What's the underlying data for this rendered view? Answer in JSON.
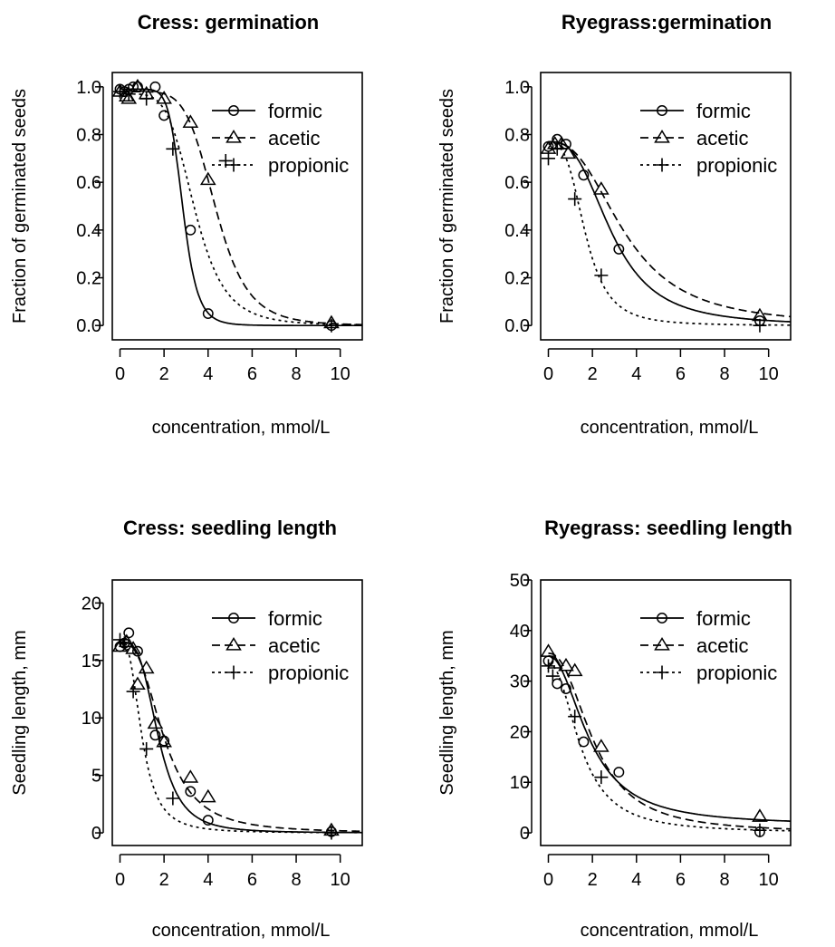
{
  "chart_data": [
    {
      "type": "scatter",
      "title": "Cress: germination",
      "xlabel": "concentration, mmol/L",
      "ylabel": "Fraction of germinated seeds",
      "xlim": [
        -0.35,
        11
      ],
      "ylim": [
        -0.06,
        1.06
      ],
      "xticks": [
        0,
        2,
        4,
        6,
        8,
        10
      ],
      "yticks": [
        0,
        0.2,
        0.4,
        0.6,
        0.8,
        1.0
      ],
      "ytick_labels": [
        "0.0",
        "0.2",
        "0.4",
        "0.6",
        "0.8",
        "1.0"
      ],
      "legend": {
        "position": "top-right"
      },
      "series": [
        {
          "name": "formic",
          "marker": "circle",
          "line": "solid",
          "points": [
            [
              0,
              0.99
            ],
            [
              0.2,
              0.98
            ],
            [
              0.4,
              0.99
            ],
            [
              0.6,
              1.0
            ],
            [
              0.8,
              1.0
            ],
            [
              1.6,
              1.0
            ],
            [
              2.0,
              0.88
            ],
            [
              3.2,
              0.4
            ],
            [
              4.0,
              0.05
            ],
            [
              9.6,
              0.0
            ]
          ],
          "curve": {
            "top": 0.99,
            "ec50": 2.85,
            "slope": 8.5
          }
        },
        {
          "name": "acetic",
          "marker": "triangle",
          "line": "dashed",
          "points": [
            [
              0,
              0.98
            ],
            [
              0.3,
              0.96
            ],
            [
              0.4,
              0.95
            ],
            [
              0.8,
              1.0
            ],
            [
              1.2,
              0.97
            ],
            [
              2.0,
              0.95
            ],
            [
              3.2,
              0.85
            ],
            [
              4.0,
              0.61
            ],
            [
              9.6,
              0.01
            ]
          ],
          "curve": {
            "top": 0.98,
            "ec50": 4.35,
            "slope": 6.0
          }
        },
        {
          "name": "propionic",
          "marker": "plus",
          "line": "dotted",
          "points": [
            [
              0,
              0.98
            ],
            [
              0.4,
              0.97
            ],
            [
              1.2,
              0.95
            ],
            [
              2.4,
              0.74
            ],
            [
              4.8,
              0.69
            ],
            [
              9.6,
              0.0
            ]
          ],
          "curve": {
            "top": 0.97,
            "ec50": 3.4,
            "slope": 5.0
          }
        }
      ]
    },
    {
      "type": "scatter",
      "title": "Ryegrass:germination",
      "xlabel": "concentration, mmol/L",
      "ylabel": "Fraction of germinated seeds",
      "xlim": [
        -0.35,
        11
      ],
      "ylim": [
        -0.06,
        1.06
      ],
      "xticks": [
        0,
        2,
        4,
        6,
        8,
        10
      ],
      "yticks": [
        0,
        0.2,
        0.4,
        0.6,
        0.8,
        1.0
      ],
      "ytick_labels": [
        "0.0",
        "0.2",
        "0.4",
        "0.6",
        "0.8",
        "1.0"
      ],
      "legend": {
        "position": "top-right"
      },
      "series": [
        {
          "name": "formic",
          "marker": "circle",
          "line": "solid",
          "points": [
            [
              0,
              0.75
            ],
            [
              0.4,
              0.78
            ],
            [
              0.8,
              0.76
            ],
            [
              1.6,
              0.63
            ],
            [
              3.2,
              0.32
            ],
            [
              9.6,
              0.02
            ]
          ],
          "curve": {
            "top": 0.77,
            "ec50": 2.9,
            "slope": 2.9
          }
        },
        {
          "name": "acetic",
          "marker": "triangle",
          "line": "dashed",
          "points": [
            [
              0,
              0.74
            ],
            [
              0.3,
              0.76
            ],
            [
              0.6,
              0.76
            ],
            [
              0.9,
              0.72
            ],
            [
              2.4,
              0.57
            ],
            [
              9.6,
              0.04
            ]
          ],
          "curve": {
            "top": 0.77,
            "ec50": 3.5,
            "slope": 2.6
          }
        },
        {
          "name": "propionic",
          "marker": "plus",
          "line": "dotted",
          "points": [
            [
              0,
              0.7
            ],
            [
              0.4,
              0.74
            ],
            [
              1.2,
              0.53
            ],
            [
              2.4,
              0.21
            ],
            [
              9.6,
              0.0
            ]
          ],
          "curve": {
            "top": 0.76,
            "ec50": 1.7,
            "slope": 3.3
          }
        }
      ]
    },
    {
      "type": "scatter",
      "title": "Cress: seedling length",
      "xlabel": "concentration, mmol/L",
      "ylabel": "Seedling length, mm",
      "xlim": [
        -0.35,
        11
      ],
      "ylim": [
        -1.1,
        22
      ],
      "xticks": [
        0,
        2,
        4,
        6,
        8,
        10
      ],
      "yticks": [
        0,
        5,
        10,
        15,
        20
      ],
      "ytick_labels": [
        "0",
        "5",
        "10",
        "15",
        "20"
      ],
      "legend": {
        "position": "top-right"
      },
      "series": [
        {
          "name": "formic",
          "marker": "circle",
          "line": "solid",
          "points": [
            [
              0,
              16.2
            ],
            [
              0.2,
              16.5
            ],
            [
              0.4,
              17.4
            ],
            [
              0.8,
              15.8
            ],
            [
              1.6,
              8.5
            ],
            [
              2.0,
              8.0
            ],
            [
              3.2,
              3.6
            ],
            [
              4.0,
              1.1
            ],
            [
              9.6,
              0.1
            ]
          ],
          "curve": {
            "top": 16.6,
            "ec50": 1.75,
            "slope": 3.5
          }
        },
        {
          "name": "acetic",
          "marker": "triangle",
          "line": "dashed",
          "points": [
            [
              0,
              16.2
            ],
            [
              0.3,
              16.6
            ],
            [
              0.6,
              16.0
            ],
            [
              0.8,
              12.9
            ],
            [
              1.2,
              14.3
            ],
            [
              1.6,
              9.5
            ],
            [
              2.0,
              7.9
            ],
            [
              3.2,
              4.8
            ],
            [
              4.0,
              3.1
            ],
            [
              9.6,
              0.2
            ]
          ],
          "curve": {
            "top": 16.6,
            "ec50": 2.0,
            "slope": 2.8
          }
        },
        {
          "name": "propionic",
          "marker": "plus",
          "line": "dotted",
          "points": [
            [
              0,
              16.8
            ],
            [
              0.2,
              16.5
            ],
            [
              0.6,
              12.3
            ],
            [
              1.2,
              7.3
            ],
            [
              2.4,
              3.0
            ],
            [
              9.6,
              0.0
            ]
          ],
          "curve": {
            "top": 16.8,
            "ec50": 1.0,
            "slope": 2.8
          }
        }
      ]
    },
    {
      "type": "scatter",
      "title": "Ryegrass: seedling length",
      "xlabel": "concentration, mmol/L",
      "ylabel": "Seedling length, mm",
      "xlim": [
        -0.35,
        11
      ],
      "ylim": [
        -2.5,
        50
      ],
      "xticks": [
        0,
        2,
        4,
        6,
        8,
        10
      ],
      "yticks": [
        0,
        10,
        20,
        30,
        40,
        50
      ],
      "ytick_labels": [
        "0",
        "10",
        "20",
        "30",
        "40",
        "50"
      ],
      "legend": {
        "position": "top-right"
      },
      "series": [
        {
          "name": "formic",
          "marker": "circle",
          "line": "solid",
          "points": [
            [
              0,
              34.0
            ],
            [
              0.4,
              29.5
            ],
            [
              0.8,
              28.5
            ],
            [
              1.6,
              18.0
            ],
            [
              3.2,
              12.0
            ],
            [
              9.6,
              0.2
            ]
          ],
          "curve": {
            "top": 35.0,
            "ec50": 1.9,
            "slope": 2.1,
            "bottom": 1.5
          }
        },
        {
          "name": "acetic",
          "marker": "triangle",
          "line": "dashed",
          "points": [
            [
              0,
              35.8
            ],
            [
              0.3,
              33.5
            ],
            [
              0.8,
              33.0
            ],
            [
              1.2,
              32.0
            ],
            [
              2.4,
              17.0
            ],
            [
              9.6,
              3.2
            ]
          ],
          "curve": {
            "top": 35.5,
            "ec50": 2.1,
            "slope": 2.3
          }
        },
        {
          "name": "propionic",
          "marker": "plus",
          "line": "dotted",
          "points": [
            [
              0,
              33.0
            ],
            [
              0.2,
              31.0
            ],
            [
              1.2,
              23.0
            ],
            [
              2.4,
              11.0
            ],
            [
              9.6,
              0.5
            ]
          ],
          "curve": {
            "top": 33.5,
            "ec50": 1.5,
            "slope": 2.2
          }
        }
      ]
    }
  ]
}
